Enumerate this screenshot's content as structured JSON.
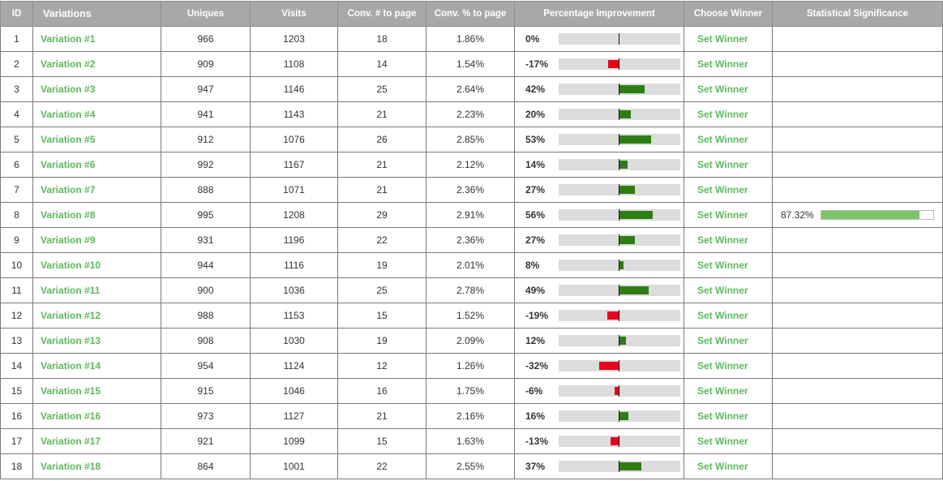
{
  "colors": {
    "header_bg": "#a8a8a8",
    "link_green": "#5cb85c",
    "positive_bar": "#2e7d14",
    "negative_bar": "#e8001c",
    "track_gray": "#dcdcdc",
    "significance_green": "#7dc36b"
  },
  "table": {
    "headers": {
      "id": "ID",
      "variations": "Variations",
      "uniques": "Uniques",
      "visits": "Visits",
      "conv_num": "Conv. # to page",
      "conv_pct": "Conv. % to page",
      "improvement": "Percentage Improvement",
      "winner": "Choose Winner",
      "significance": "Statistical Significance"
    },
    "rows": [
      {
        "id": "1",
        "name": "Variation #1",
        "uniques": "966",
        "visits": "1203",
        "conv_num": "18",
        "conv_pct": "1.86%",
        "improvement_label": "0%",
        "improvement": 0,
        "winner_label": "Set Winner",
        "significance_label": "",
        "significance": null
      },
      {
        "id": "2",
        "name": "Variation #2",
        "uniques": "909",
        "visits": "1108",
        "conv_num": "14",
        "conv_pct": "1.54%",
        "improvement_label": "-17%",
        "improvement": -17,
        "winner_label": "Set Winner",
        "significance_label": "",
        "significance": null
      },
      {
        "id": "3",
        "name": "Variation #3",
        "uniques": "947",
        "visits": "1146",
        "conv_num": "25",
        "conv_pct": "2.64%",
        "improvement_label": "42%",
        "improvement": 42,
        "winner_label": "Set Winner",
        "significance_label": "",
        "significance": null
      },
      {
        "id": "4",
        "name": "Variation #4",
        "uniques": "941",
        "visits": "1143",
        "conv_num": "21",
        "conv_pct": "2.23%",
        "improvement_label": "20%",
        "improvement": 20,
        "winner_label": "Set Winner",
        "significance_label": "",
        "significance": null
      },
      {
        "id": "5",
        "name": "Variation #5",
        "uniques": "912",
        "visits": "1076",
        "conv_num": "26",
        "conv_pct": "2.85%",
        "improvement_label": "53%",
        "improvement": 53,
        "winner_label": "Set Winner",
        "significance_label": "",
        "significance": null
      },
      {
        "id": "6",
        "name": "Variation #6",
        "uniques": "992",
        "visits": "1167",
        "conv_num": "21",
        "conv_pct": "2.12%",
        "improvement_label": "14%",
        "improvement": 14,
        "winner_label": "Set Winner",
        "significance_label": "",
        "significance": null
      },
      {
        "id": "7",
        "name": "Variation #7",
        "uniques": "888",
        "visits": "1071",
        "conv_num": "21",
        "conv_pct": "2.36%",
        "improvement_label": "27%",
        "improvement": 27,
        "winner_label": "Set Winner",
        "significance_label": "",
        "significance": null
      },
      {
        "id": "8",
        "name": "Variation #8",
        "uniques": "995",
        "visits": "1208",
        "conv_num": "29",
        "conv_pct": "2.91%",
        "improvement_label": "56%",
        "improvement": 56,
        "winner_label": "Set Winner",
        "significance_label": "87.32%",
        "significance": 87.32
      },
      {
        "id": "9",
        "name": "Variation #9",
        "uniques": "931",
        "visits": "1196",
        "conv_num": "22",
        "conv_pct": "2.36%",
        "improvement_label": "27%",
        "improvement": 27,
        "winner_label": "Set Winner",
        "significance_label": "",
        "significance": null
      },
      {
        "id": "10",
        "name": "Variation #10",
        "uniques": "944",
        "visits": "1116",
        "conv_num": "19",
        "conv_pct": "2.01%",
        "improvement_label": "8%",
        "improvement": 8,
        "winner_label": "Set Winner",
        "significance_label": "",
        "significance": null
      },
      {
        "id": "11",
        "name": "Variation #11",
        "uniques": "900",
        "visits": "1036",
        "conv_num": "25",
        "conv_pct": "2.78%",
        "improvement_label": "49%",
        "improvement": 49,
        "winner_label": "Set Winner",
        "significance_label": "",
        "significance": null
      },
      {
        "id": "12",
        "name": "Variation #12",
        "uniques": "988",
        "visits": "1153",
        "conv_num": "15",
        "conv_pct": "1.52%",
        "improvement_label": "-19%",
        "improvement": -19,
        "winner_label": "Set Winner",
        "significance_label": "",
        "significance": null
      },
      {
        "id": "13",
        "name": "Variation #13",
        "uniques": "908",
        "visits": "1030",
        "conv_num": "19",
        "conv_pct": "2.09%",
        "improvement_label": "12%",
        "improvement": 12,
        "winner_label": "Set Winner",
        "significance_label": "",
        "significance": null
      },
      {
        "id": "14",
        "name": "Variation #14",
        "uniques": "954",
        "visits": "1124",
        "conv_num": "12",
        "conv_pct": "1.26%",
        "improvement_label": "-32%",
        "improvement": -32,
        "winner_label": "Set Winner",
        "significance_label": "",
        "significance": null
      },
      {
        "id": "15",
        "name": "Variation #15",
        "uniques": "915",
        "visits": "1046",
        "conv_num": "16",
        "conv_pct": "1.75%",
        "improvement_label": "-6%",
        "improvement": -6,
        "winner_label": "Set Winner",
        "significance_label": "",
        "significance": null
      },
      {
        "id": "16",
        "name": "Variation #16",
        "uniques": "973",
        "visits": "1127",
        "conv_num": "21",
        "conv_pct": "2.16%",
        "improvement_label": "16%",
        "improvement": 16,
        "winner_label": "Set Winner",
        "significance_label": "",
        "significance": null
      },
      {
        "id": "17",
        "name": "Variation #17",
        "uniques": "921",
        "visits": "1099",
        "conv_num": "15",
        "conv_pct": "1.63%",
        "improvement_label": "-13%",
        "improvement": -13,
        "winner_label": "Set Winner",
        "significance_label": "",
        "significance": null
      },
      {
        "id": "18",
        "name": "Variation #18",
        "uniques": "864",
        "visits": "1001",
        "conv_num": "22",
        "conv_pct": "2.55%",
        "improvement_label": "37%",
        "improvement": 37,
        "winner_label": "Set Winner",
        "significance_label": "",
        "significance": null
      }
    ]
  }
}
